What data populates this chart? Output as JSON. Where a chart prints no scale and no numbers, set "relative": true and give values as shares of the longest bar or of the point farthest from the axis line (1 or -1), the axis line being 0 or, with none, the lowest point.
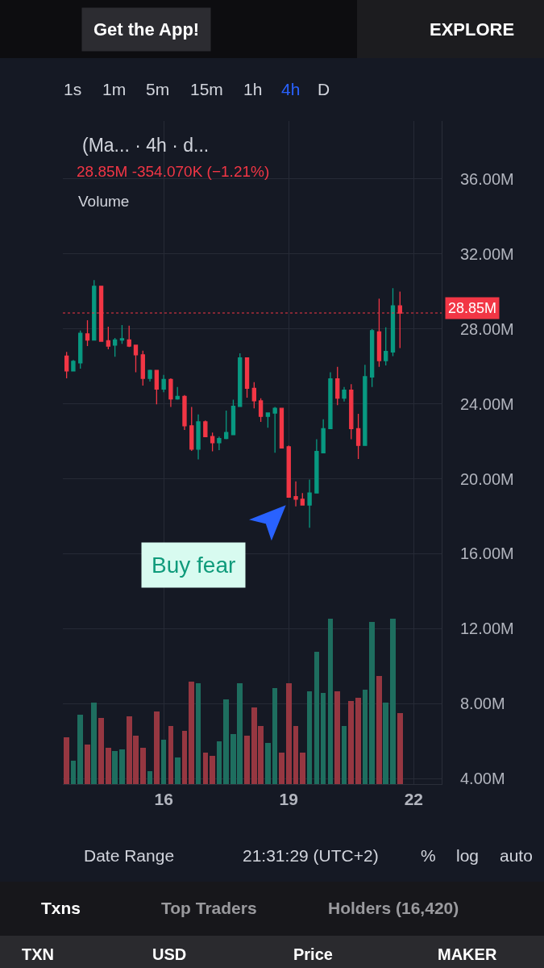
{
  "chart_data": [
    {
      "type": "candlestick",
      "title": "(Ma... · 4h · d...",
      "subtitle": "28.85M -354.070K (−1.21%)",
      "x": [
        13.67,
        13.83,
        14,
        14.17,
        14.33,
        14.5,
        14.67,
        14.83,
        15,
        15.17,
        15.33,
        15.5,
        15.67,
        15.83,
        16,
        16.17,
        16.33,
        16.5,
        16.67,
        16.83,
        17,
        17.17,
        17.33,
        17.5,
        17.67,
        17.83,
        18,
        18.17,
        18.33,
        18.5,
        18.67,
        18.83,
        19,
        19.17,
        19.33,
        19.5,
        19.67,
        19.83,
        20,
        20.17,
        20.33,
        20.5,
        20.67,
        20.83,
        21,
        21.17,
        21.33,
        21.5,
        21.67
      ],
      "ohlc": [
        [
          26.55,
          26.77,
          25.36,
          25.76
        ],
        [
          25.76,
          26.34,
          25.74,
          26.27
        ],
        [
          26.19,
          27.91,
          25.88,
          27.77
        ],
        [
          27.74,
          28.46,
          27.08,
          27.4
        ],
        [
          27.4,
          30.61,
          27.4,
          30.28
        ],
        [
          30.28,
          30.28,
          27.34,
          27.34
        ],
        [
          27.37,
          28.12,
          26.91,
          27.08
        ],
        [
          27.13,
          27.51,
          26.51,
          27.41
        ],
        [
          27.4,
          28.2,
          27.2,
          27.48
        ],
        [
          27.41,
          28.17,
          27.03,
          27.08
        ],
        [
          27.13,
          27.13,
          25.69,
          26.62
        ],
        [
          26.62,
          26.84,
          24.97,
          25.36
        ],
        [
          25.36,
          25.83,
          25.19,
          25.79
        ],
        [
          25.79,
          25.79,
          23.97,
          24.79
        ],
        [
          24.79,
          25.55,
          24.62,
          25.3
        ],
        [
          25.3,
          25.36,
          23.83,
          24.26
        ],
        [
          24.26,
          24.9,
          24.22,
          24.4
        ],
        [
          24.4,
          24.47,
          22.61,
          22.83
        ],
        [
          22.83,
          23.83,
          21.49,
          21.58
        ],
        [
          21.58,
          23.44,
          21.03,
          23.04
        ],
        [
          23.04,
          23.11,
          22.25,
          22.25
        ],
        [
          22.25,
          22.47,
          21.46,
          21.92
        ],
        [
          21.92,
          22.25,
          21.53,
          22.15
        ],
        [
          22.15,
          23.64,
          22.11,
          22.47
        ],
        [
          22.35,
          24.22,
          22.35,
          23.87
        ],
        [
          23.86,
          26.7,
          23.86,
          26.45
        ],
        [
          26.45,
          26.45,
          24.33,
          24.83
        ],
        [
          24.83,
          25.16,
          23.76,
          24.16
        ],
        [
          24.16,
          24.3,
          23.04,
          23.33
        ],
        [
          23.33,
          23.54,
          22.72,
          23.51
        ],
        [
          23.51,
          23.83,
          21.39,
          23.76
        ],
        [
          23.76,
          23.76,
          21.64,
          21.64
        ],
        [
          21.71,
          21.78,
          19.02,
          19.02
        ],
        [
          19.05,
          19.86,
          18.52,
          18.91
        ],
        [
          18.91,
          19.24,
          18.6,
          18.6
        ],
        [
          18.6,
          19.96,
          17.38,
          19.24
        ],
        [
          19.24,
          22.11,
          19.24,
          21.46
        ],
        [
          21.39,
          23.18,
          21.39,
          22.68
        ],
        [
          22.68,
          25.69,
          22.68,
          25.33
        ],
        [
          25.33,
          25.98,
          23.93,
          24.3
        ],
        [
          24.3,
          24.9,
          24.12,
          24.73
        ],
        [
          24.73,
          25.05,
          22.11,
          22.68
        ],
        [
          22.68,
          23.47,
          21.06,
          21.78
        ],
        [
          21.78,
          26.08,
          21.78,
          25.45
        ],
        [
          25.43,
          27.99,
          24.9,
          27.91
        ],
        [
          27.84,
          29.61,
          25.98,
          26.31
        ],
        [
          26.31,
          28.09,
          26.05,
          26.8
        ],
        [
          26.77,
          30.18,
          26.55,
          29.23
        ],
        [
          29.23,
          29.99,
          26.98,
          28.85
        ]
      ],
      "colors": [
        "#f23645",
        "#089981",
        "#089981",
        "#f23645",
        "#089981",
        "#f23645",
        "#f23645",
        "#089981",
        "#089981",
        "#f23645",
        "#f23645",
        "#f23645",
        "#089981",
        "#f23645",
        "#089981",
        "#f23645",
        "#089981",
        "#f23645",
        "#f23645",
        "#089981",
        "#f23645",
        "#f23645",
        "#089981",
        "#089981",
        "#089981",
        "#089981",
        "#f23645",
        "#f23645",
        "#f23645",
        "#089981",
        "#089981",
        "#f23645",
        "#f23645",
        "#f23645",
        "#f23645",
        "#089981",
        "#089981",
        "#089981",
        "#089981",
        "#f23645",
        "#089981",
        "#f23645",
        "#f23645",
        "#089981",
        "#089981",
        "#f23645",
        "#089981",
        "#089981",
        "#f23645"
      ],
      "xlim": [
        13.58,
        22.67
      ],
      "xticks": [
        16,
        19,
        22
      ],
      "ylim": [
        3.7,
        39.1
      ],
      "yticks": [
        {
          "value": 4,
          "label": "4.00M"
        },
        {
          "value": 8,
          "label": "8.00M"
        },
        {
          "value": 12,
          "label": "12.00M"
        },
        {
          "value": 16,
          "label": "16.00M"
        },
        {
          "value": 20,
          "label": "20.00M"
        },
        {
          "value": 24,
          "label": "24.00M"
        },
        {
          "value": 28,
          "label": "28.00M"
        },
        {
          "value": 32,
          "label": "32.00M"
        },
        {
          "value": 36,
          "label": "36.00M"
        }
      ],
      "grid": true,
      "ref_lines": [
        {
          "axis": "y",
          "value": 28.85,
          "label": "28.85M",
          "color": "#f23645",
          "line_style": "dotted"
        }
      ],
      "annotations": [
        "Buy fear",
        "Get the App!",
        "EXPLORE",
        "1s",
        "1m",
        "5m",
        "15m",
        "1h",
        "4h",
        "D",
        "Date Range",
        "21:31:29 (UTC+2)",
        "%",
        "log",
        "auto",
        "Txns",
        "Top Traders",
        "Holders (16,420)",
        "TXN",
        "USD",
        "Price",
        "MAKER"
      ]
    },
    {
      "type": "bar",
      "title": "Volume",
      "relative": true,
      "tick_labels": false,
      "x": [
        13.67,
        13.83,
        14,
        14.17,
        14.33,
        14.5,
        14.67,
        14.83,
        15,
        15.17,
        15.33,
        15.5,
        15.67,
        15.83,
        16,
        16.17,
        16.33,
        16.5,
        16.67,
        16.83,
        17,
        17.17,
        17.33,
        17.5,
        17.67,
        17.83,
        18,
        18.17,
        18.33,
        18.5,
        18.67,
        18.83,
        19,
        19.17,
        19.33,
        19.5,
        19.67,
        19.83,
        20,
        20.17,
        20.33,
        20.5,
        20.67,
        20.83,
        21,
        21.17,
        21.33,
        21.5,
        21.67
      ],
      "values": [
        0.28,
        0.14,
        0.42,
        0.24,
        0.49,
        0.4,
        0.22,
        0.2,
        0.21,
        0.41,
        0.29,
        0.22,
        0.08,
        0.44,
        0.27,
        0.35,
        0.16,
        0.32,
        0.62,
        0.61,
        0.19,
        0.17,
        0.26,
        0.51,
        0.3,
        0.61,
        0.29,
        0.46,
        0.35,
        0.25,
        0.58,
        0.19,
        0.61,
        0.35,
        0.19,
        0.56,
        0.8,
        0.55,
        1,
        0.56,
        0.35,
        0.5,
        0.52,
        0.57,
        0.98,
        0.65,
        0.49,
        1,
        0.43
      ],
      "colors": [
        "#963741",
        "#1e6e5f",
        "#1e6e5f",
        "#963741",
        "#1e6e5f",
        "#963741",
        "#963741",
        "#1e6e5f",
        "#1e6e5f",
        "#963741",
        "#963741",
        "#963741",
        "#1e6e5f",
        "#963741",
        "#1e6e5f",
        "#963741",
        "#1e6e5f",
        "#963741",
        "#963741",
        "#1e6e5f",
        "#963741",
        "#963741",
        "#1e6e5f",
        "#1e6e5f",
        "#1e6e5f",
        "#1e6e5f",
        "#963741",
        "#963741",
        "#963741",
        "#1e6e5f",
        "#1e6e5f",
        "#963741",
        "#963741",
        "#963741",
        "#963741",
        "#1e6e5f",
        "#1e6e5f",
        "#1e6e5f",
        "#1e6e5f",
        "#963741",
        "#1e6e5f",
        "#963741",
        "#963741",
        "#1e6e5f",
        "#1e6e5f",
        "#963741",
        "#1e6e5f",
        "#1e6e5f",
        "#963741"
      ],
      "xlim": [
        13.58,
        22.67
      ]
    }
  ]
}
